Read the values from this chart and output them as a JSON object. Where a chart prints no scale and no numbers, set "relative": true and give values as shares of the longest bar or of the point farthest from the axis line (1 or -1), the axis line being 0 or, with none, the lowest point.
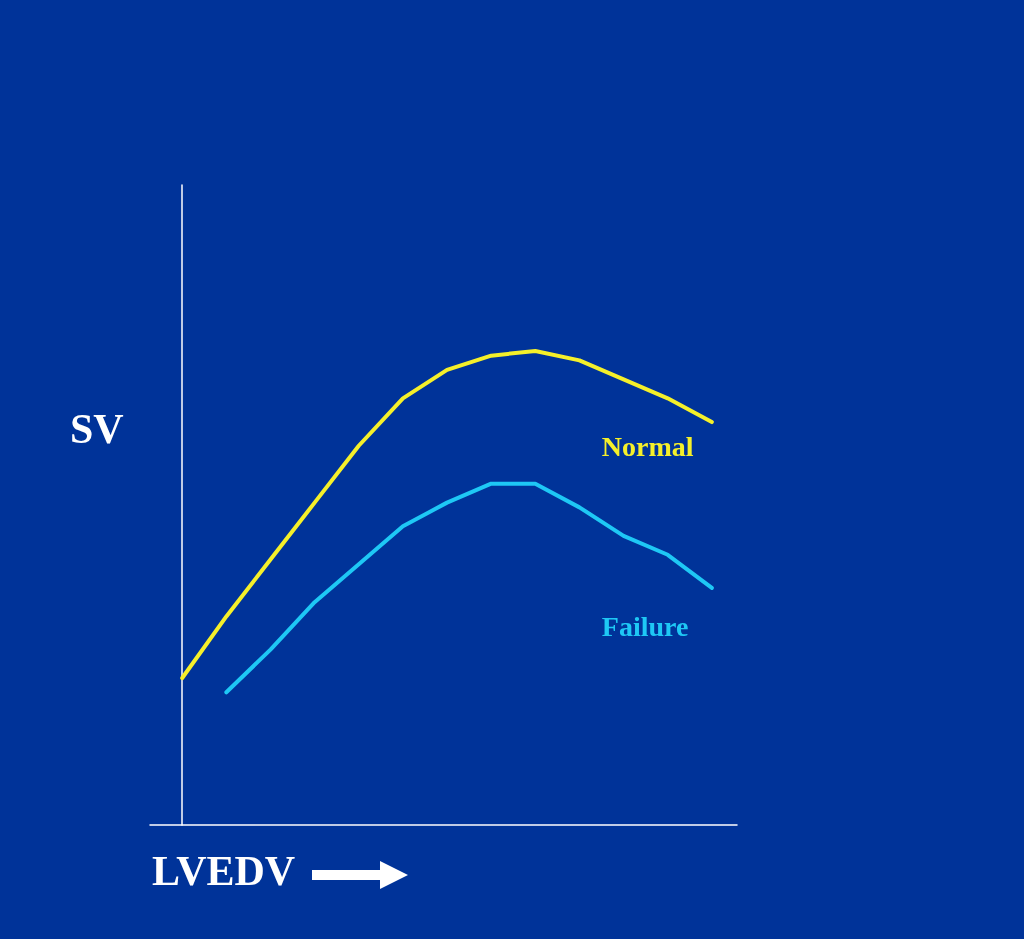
{
  "chart_data": {
    "type": "line",
    "relative": true,
    "xlabel": "LVEDV",
    "ylabel": "SV",
    "legend": false,
    "grid": false,
    "marker": "none",
    "line_style": "solid",
    "categories": [
      null,
      null,
      null,
      null,
      null,
      null,
      null,
      null,
      null,
      null,
      null,
      null,
      null
    ],
    "series": [
      {
        "name": "Normal",
        "color": "#f5f02a",
        "values": [
          0.31,
          0.44,
          0.56,
          0.68,
          0.8,
          0.9,
          0.96,
          0.99,
          1.0,
          0.98,
          0.94,
          0.9,
          0.85
        ]
      },
      {
        "name": "Failure",
        "color": "#1ec8f5",
        "values": [
          null,
          0.28,
          0.37,
          0.47,
          0.55,
          0.63,
          0.68,
          0.72,
          0.72,
          0.67,
          0.61,
          0.57,
          0.5
        ]
      }
    ]
  }
}
